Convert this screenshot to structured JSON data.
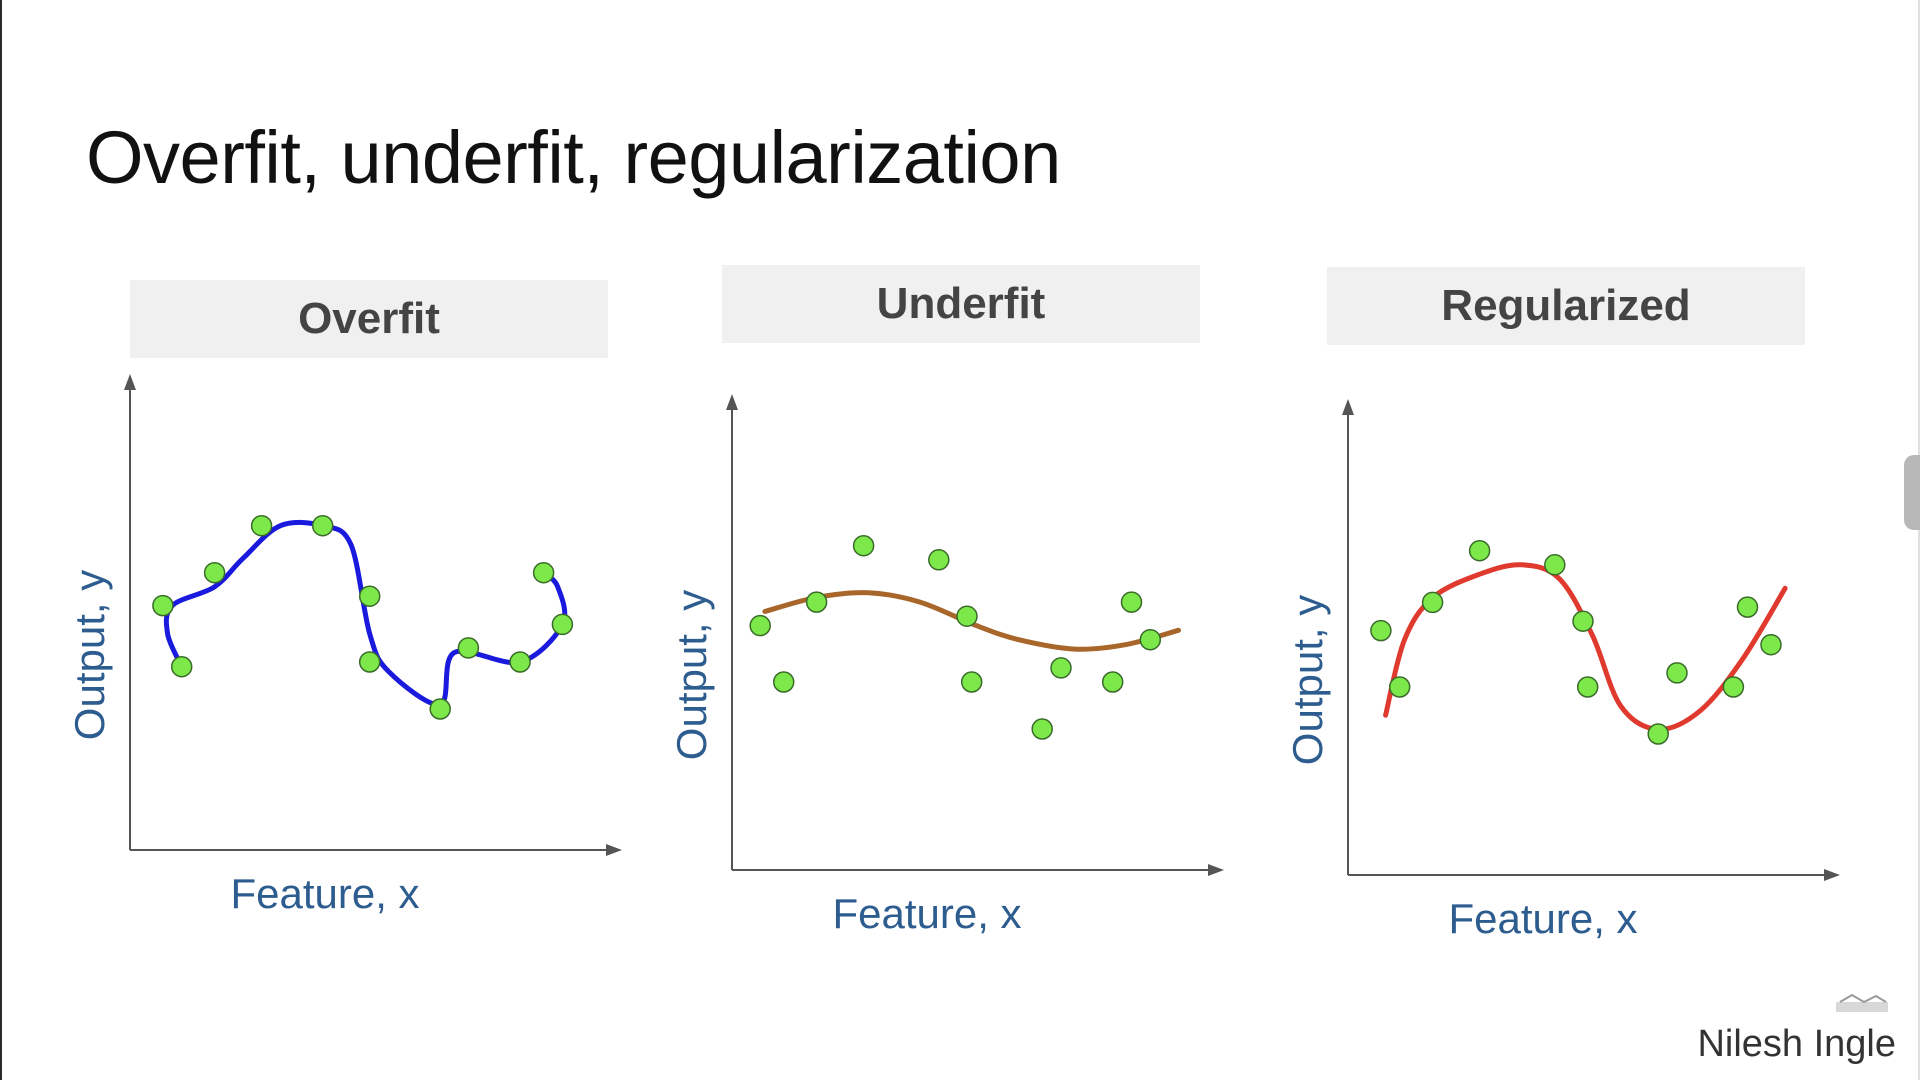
{
  "slide": {
    "title": "Overfit, underfit, regularization",
    "author": "Nilesh Ingle"
  },
  "colors": {
    "overfit_curve": "#1a1adf",
    "underfit_curve": "#a8662a",
    "regularized_curve": "#e03a2e",
    "points": "#7de84a",
    "axis_label": "#2d5c8f"
  },
  "chart_data": [
    {
      "type": "scatter",
      "title": "Overfit",
      "xlabel": "Feature, x",
      "ylabel": "Output, y",
      "xlim": [
        0,
        10
      ],
      "ylim": [
        0,
        10
      ],
      "grid": false,
      "points": [
        {
          "x": 0.7,
          "y": 5.2
        },
        {
          "x": 1.1,
          "y": 3.9
        },
        {
          "x": 1.8,
          "y": 5.9
        },
        {
          "x": 2.8,
          "y": 6.9
        },
        {
          "x": 4.1,
          "y": 6.9
        },
        {
          "x": 5.1,
          "y": 5.4
        },
        {
          "x": 5.1,
          "y": 4.0
        },
        {
          "x": 6.6,
          "y": 3.0
        },
        {
          "x": 7.2,
          "y": 4.3
        },
        {
          "x": 8.3,
          "y": 4.0
        },
        {
          "x": 8.8,
          "y": 5.9
        },
        {
          "x": 9.2,
          "y": 4.8
        }
      ],
      "curve": {
        "color": "#1a1adf",
        "points": [
          {
            "x": 1.1,
            "y": 3.9
          },
          {
            "x": 0.8,
            "y": 4.6
          },
          {
            "x": 0.9,
            "y": 5.2
          },
          {
            "x": 1.8,
            "y": 5.6
          },
          {
            "x": 2.4,
            "y": 6.2
          },
          {
            "x": 3.2,
            "y": 6.9
          },
          {
            "x": 4.1,
            "y": 6.9
          },
          {
            "x": 4.7,
            "y": 6.5
          },
          {
            "x": 5.1,
            "y": 4.6
          },
          {
            "x": 5.5,
            "y": 3.8
          },
          {
            "x": 6.6,
            "y": 3.1
          },
          {
            "x": 6.9,
            "y": 4.2
          },
          {
            "x": 8.3,
            "y": 4.0
          },
          {
            "x": 9.2,
            "y": 4.8
          },
          {
            "x": 9.1,
            "y": 5.6
          },
          {
            "x": 8.8,
            "y": 5.9
          }
        ]
      }
    },
    {
      "type": "scatter",
      "title": "Underfit",
      "xlabel": "Feature, x",
      "ylabel": "Output, y",
      "xlim": [
        0,
        10
      ],
      "ylim": [
        0,
        10
      ],
      "grid": false,
      "points": [
        {
          "x": 0.6,
          "y": 5.2
        },
        {
          "x": 1.1,
          "y": 4.0
        },
        {
          "x": 1.8,
          "y": 5.7
        },
        {
          "x": 2.8,
          "y": 6.9
        },
        {
          "x": 4.4,
          "y": 6.6
        },
        {
          "x": 5.0,
          "y": 5.4
        },
        {
          "x": 5.1,
          "y": 4.0
        },
        {
          "x": 6.6,
          "y": 3.0
        },
        {
          "x": 7.0,
          "y": 4.3
        },
        {
          "x": 8.1,
          "y": 4.0
        },
        {
          "x": 8.5,
          "y": 5.7
        },
        {
          "x": 8.9,
          "y": 4.9
        }
      ],
      "curve": {
        "color": "#a8662a",
        "points": [
          {
            "x": 0.7,
            "y": 5.5
          },
          {
            "x": 1.8,
            "y": 5.8
          },
          {
            "x": 2.9,
            "y": 5.9
          },
          {
            "x": 4.0,
            "y": 5.7
          },
          {
            "x": 5.2,
            "y": 5.2
          },
          {
            "x": 6.1,
            "y": 4.9
          },
          {
            "x": 7.3,
            "y": 4.7
          },
          {
            "x": 8.4,
            "y": 4.8
          },
          {
            "x": 9.5,
            "y": 5.1
          }
        ]
      }
    },
    {
      "type": "scatter",
      "title": "Regularized",
      "xlabel": "Feature, x",
      "ylabel": "Output, y",
      "xlim": [
        0,
        10
      ],
      "ylim": [
        0,
        10
      ],
      "grid": false,
      "points": [
        {
          "x": 0.7,
          "y": 5.2
        },
        {
          "x": 1.1,
          "y": 4.0
        },
        {
          "x": 1.8,
          "y": 5.8
        },
        {
          "x": 2.8,
          "y": 6.9
        },
        {
          "x": 4.4,
          "y": 6.6
        },
        {
          "x": 5.0,
          "y": 5.4
        },
        {
          "x": 5.1,
          "y": 4.0
        },
        {
          "x": 6.6,
          "y": 3.0
        },
        {
          "x": 7.0,
          "y": 4.3
        },
        {
          "x": 8.2,
          "y": 4.0
        },
        {
          "x": 8.5,
          "y": 5.7
        },
        {
          "x": 9.0,
          "y": 4.9
        }
      ],
      "curve": {
        "color": "#e03a2e",
        "points": [
          {
            "x": 0.8,
            "y": 3.4
          },
          {
            "x": 1.2,
            "y": 5.0
          },
          {
            "x": 1.8,
            "y": 5.9
          },
          {
            "x": 2.8,
            "y": 6.4
          },
          {
            "x": 3.7,
            "y": 6.6
          },
          {
            "x": 4.5,
            "y": 6.3
          },
          {
            "x": 5.2,
            "y": 5.1
          },
          {
            "x": 5.8,
            "y": 3.6
          },
          {
            "x": 6.6,
            "y": 3.1
          },
          {
            "x": 7.5,
            "y": 3.5
          },
          {
            "x": 8.4,
            "y": 4.6
          },
          {
            "x": 9.3,
            "y": 6.1
          }
        ]
      }
    }
  ]
}
